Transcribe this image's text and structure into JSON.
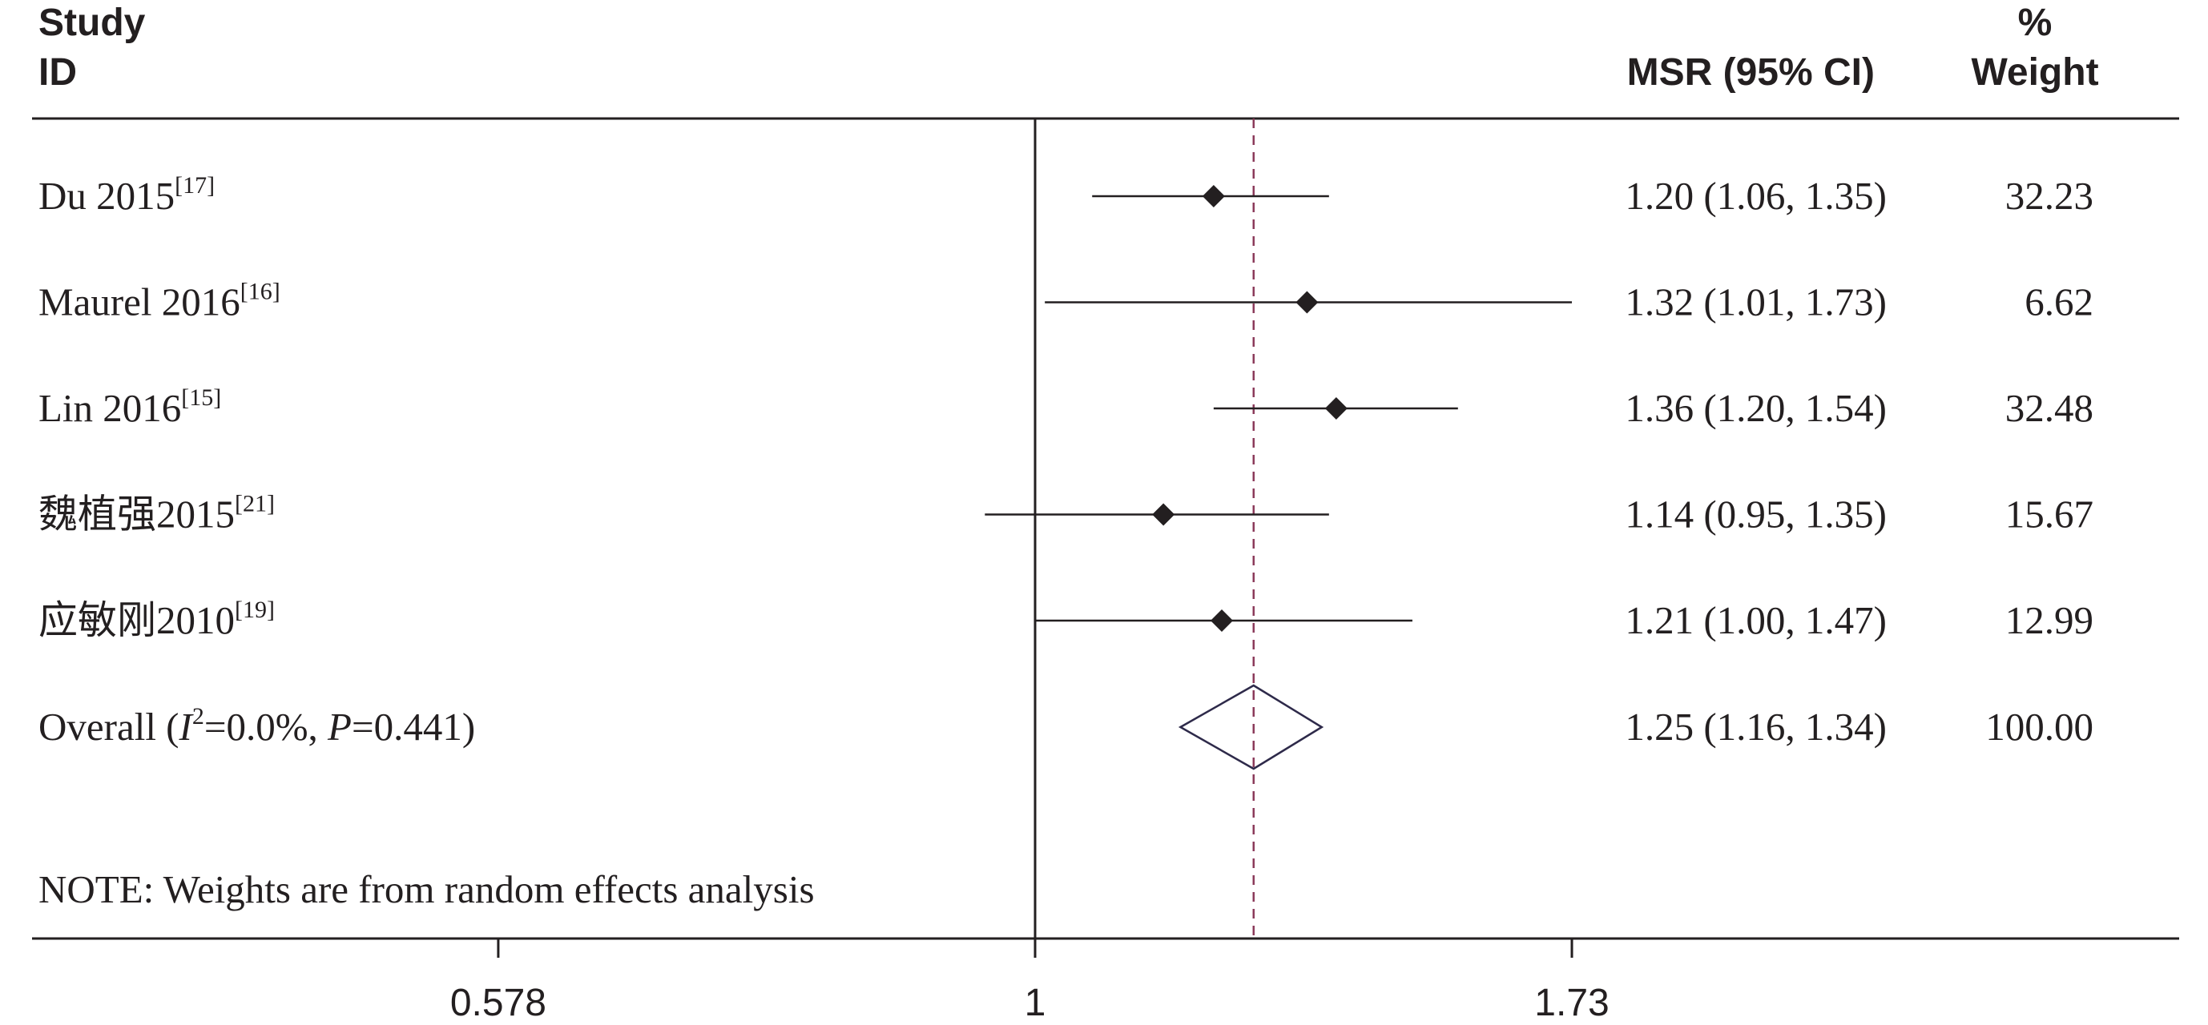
{
  "header": {
    "study_line1": "Study",
    "study_line2": "ID",
    "effect": "MSR (95% CI)",
    "weight_line1": "%",
    "weight_line2": "Weight"
  },
  "chart_data": {
    "type": "forest",
    "scale": "log",
    "xticks": [
      0.578,
      1,
      1.73
    ],
    "xtick_labels": [
      "0.578",
      "1",
      "1.73"
    ],
    "xlim": [
      0.578,
      1.73
    ],
    "null_line": 1,
    "studies": [
      {
        "label": "Du 2015",
        "ref": "[17]",
        "est": 1.2,
        "lo": 1.06,
        "hi": 1.35,
        "ci_text": "1.20 (1.06, 1.35)",
        "weight": "32.23"
      },
      {
        "label": "Maurel 2016",
        "ref": "[16]",
        "est": 1.32,
        "lo": 1.01,
        "hi": 1.73,
        "ci_text": "1.32 (1.01, 1.73)",
        "weight": "6.62"
      },
      {
        "label": "Lin 2016",
        "ref": "[15]",
        "est": 1.36,
        "lo": 1.2,
        "hi": 1.54,
        "ci_text": "1.36 (1.20, 1.54)",
        "weight": "32.48"
      },
      {
        "label": "魏植强2015",
        "ref": "[21]",
        "est": 1.14,
        "lo": 0.95,
        "hi": 1.35,
        "ci_text": "1.14 (0.95, 1.35)",
        "weight": "15.67"
      },
      {
        "label": "应敏刚2010",
        "ref": "[19]",
        "est": 1.21,
        "lo": 1.0,
        "hi": 1.47,
        "ci_text": "1.21 (1.00, 1.47)",
        "weight": "12.99"
      }
    ],
    "overall": {
      "label_prefix": "Overall (",
      "i_symbol": "I",
      "i_exp": "2",
      "i_value": "=0.0%, ",
      "p_symbol": "P",
      "p_value": "=0.441)",
      "est": 1.25,
      "lo": 1.16,
      "hi": 1.34,
      "ci_text": "1.25 (1.16, 1.34)",
      "weight": "100.00"
    },
    "note": "NOTE: Weights are from random effects analysis",
    "colors": {
      "ink": "#231f20",
      "pooled_line": "#8b3a5a",
      "diamond": "#2e2a4a"
    }
  }
}
